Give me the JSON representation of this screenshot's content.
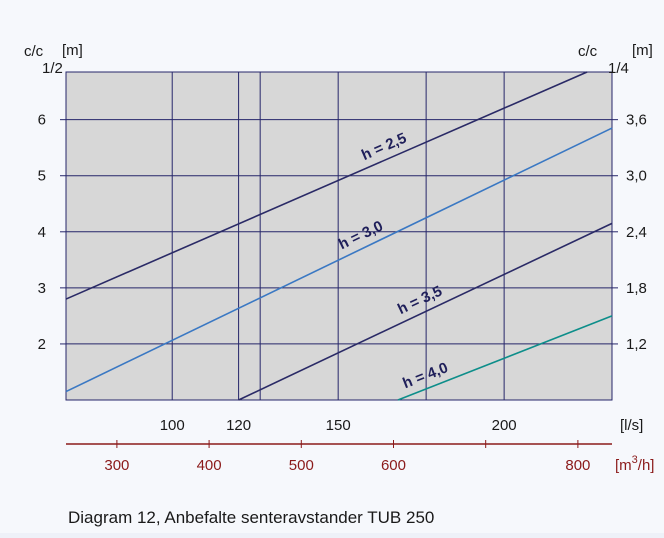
{
  "chart_data": {
    "type": "line",
    "caption": "Diagram 12, Anbefalte senteravstander TUB 250",
    "left_axis": {
      "label_main": "c/c",
      "label_sub": "1/2",
      "label_unit": "[m]",
      "ticks": [
        2,
        3,
        4,
        5,
        6
      ],
      "ylim": [
        1,
        6.85
      ]
    },
    "right_axis": {
      "label_main": "c/c",
      "label_sub": "1/4",
      "label_unit": "[m]",
      "ticks": [
        {
          "at": 2,
          "label": "1,2"
        },
        {
          "at": 3,
          "label": "1,8"
        },
        {
          "at": 4,
          "label": "2,4"
        },
        {
          "at": 5,
          "label": "3,0"
        },
        {
          "at": 6,
          "label": "3,6"
        }
      ]
    },
    "x_axis_ls": {
      "unit": "[l/s]",
      "ticks": [
        100,
        120,
        150,
        200
      ],
      "xlim": [
        68,
        232.5
      ]
    },
    "x_axis_m3h": {
      "unit": "[m3/h]",
      "unit_base": "[m",
      "unit_sup": "3",
      "unit_tail": "/h]",
      "ticks": [
        300,
        400,
        500,
        600,
        800
      ]
    },
    "grid": true,
    "colors": {
      "background": "#d7d7d7",
      "h25": "#2a2a66",
      "h30": "#3a78c3",
      "h35": "#2a2a66",
      "h40": "#0d8e8a",
      "m3h_axis": "#8b1a1a",
      "ticks_text": "#1a1a1a"
    },
    "series": [
      {
        "name": "h = 2,5",
        "key": "h25",
        "x": [
          68,
          225
        ],
        "y": [
          2.8,
          6.85
        ]
      },
      {
        "name": "h = 3,0",
        "key": "h30",
        "x": [
          68,
          232.5
        ],
        "y": [
          1.15,
          5.85
        ]
      },
      {
        "name": "h = 3,5",
        "key": "h35",
        "x": [
          120,
          232.5
        ],
        "y": [
          1.0,
          4.15
        ]
      },
      {
        "name": "h = 4,0",
        "key": "h40",
        "x": [
          168,
          232.5
        ],
        "y": [
          1.0,
          2.5
        ]
      }
    ]
  }
}
